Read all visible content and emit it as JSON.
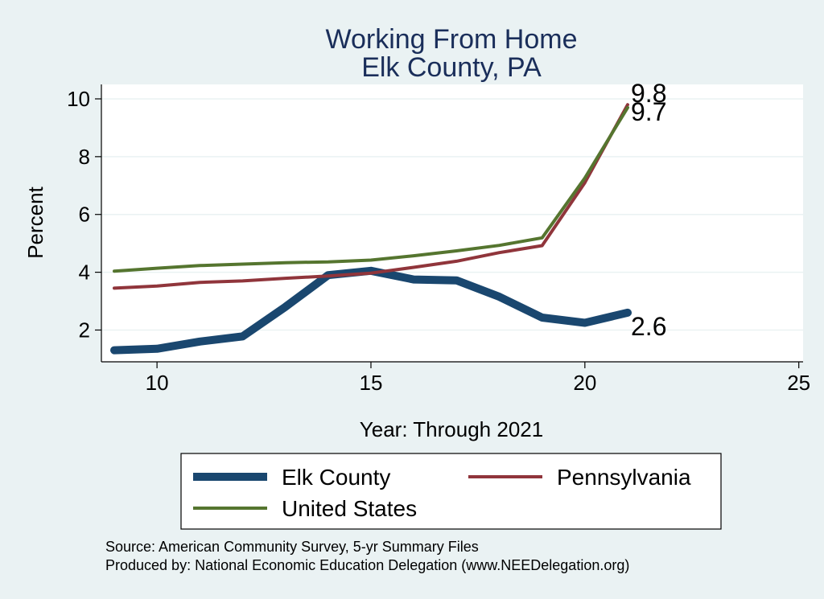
{
  "chart_data": {
    "type": "line",
    "title": [
      "Working From Home",
      "Elk County, PA"
    ],
    "xlabel": "Year: Through 2021",
    "ylabel": "Percent",
    "xlim": [
      8.7,
      25.1
    ],
    "ylim": [
      0.9,
      10.5
    ],
    "xticks": [
      10,
      15,
      20,
      25
    ],
    "yticks": [
      2,
      4,
      6,
      8,
      10
    ],
    "grid": true,
    "series": [
      {
        "name": "Elk County",
        "color": "#1a476f",
        "x": [
          9,
          10,
          11,
          12,
          13,
          14,
          15,
          16,
          17,
          18,
          19,
          20,
          21
        ],
        "values": [
          1.3,
          1.35,
          1.6,
          1.78,
          2.8,
          3.9,
          4.05,
          3.75,
          3.72,
          3.15,
          2.43,
          2.25,
          2.6
        ],
        "end_label": "2.6"
      },
      {
        "name": "Pennsylvania",
        "color": "#90353b",
        "x": [
          9,
          10,
          11,
          12,
          13,
          14,
          15,
          16,
          17,
          18,
          19,
          20,
          21
        ],
        "values": [
          3.45,
          3.52,
          3.65,
          3.7,
          3.79,
          3.87,
          3.97,
          4.17,
          4.38,
          4.68,
          4.92,
          7.1,
          9.8
        ],
        "end_label": "9.8"
      },
      {
        "name": "United States",
        "color": "#55752f",
        "x": [
          9,
          10,
          11,
          12,
          13,
          14,
          15,
          16,
          17,
          18,
          19,
          20,
          21
        ],
        "values": [
          4.04,
          4.14,
          4.23,
          4.28,
          4.33,
          4.36,
          4.42,
          4.57,
          4.74,
          4.93,
          5.19,
          7.26,
          9.7
        ],
        "end_label": "9.7"
      }
    ],
    "legend": {
      "position": "bottom",
      "entries": [
        "Elk County",
        "Pennsylvania",
        "United States"
      ]
    }
  },
  "notes": [
    "Source: American Community Survey, 5-yr Summary Files",
    "Produced by: National Economic Education Delegation (www.NEEDelegation.org)"
  ]
}
